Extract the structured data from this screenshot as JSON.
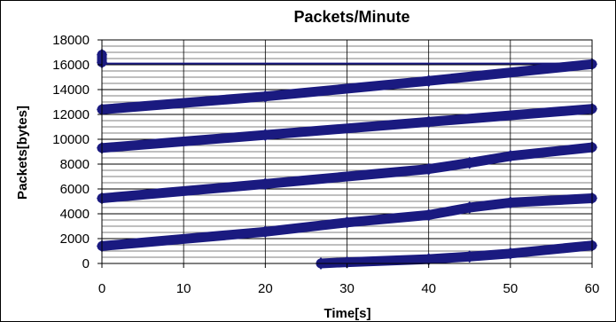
{
  "chart_data": {
    "type": "scatter",
    "title": "Packets/Minute",
    "xlabel": "Time[s]",
    "ylabel": "Packets[bytes]",
    "xlim": [
      0,
      60
    ],
    "ylim": [
      0,
      18000
    ],
    "x_ticks": [
      0,
      10,
      20,
      30,
      40,
      50,
      60
    ],
    "y_ticks": [
      0,
      2000,
      4000,
      6000,
      8000,
      10000,
      12000,
      14000,
      16000,
      18000
    ],
    "minor_y_step": 500,
    "grid": true,
    "legend": "none",
    "marker_color": "#1a1a80",
    "horizontal_lines": [
      16100
    ],
    "series": [
      {
        "points": [
          [
            0,
            16200
          ],
          [
            0,
            16800
          ]
        ]
      },
      {
        "points": [
          [
            0,
            12400
          ],
          [
            20,
            13450
          ],
          [
            40,
            14700
          ],
          [
            60,
            16050
          ]
        ]
      },
      {
        "points": [
          [
            0,
            9300
          ],
          [
            20,
            10350
          ],
          [
            40,
            11400
          ],
          [
            60,
            12450
          ]
        ]
      },
      {
        "points": [
          [
            0,
            5250
          ],
          [
            20,
            6400
          ],
          [
            40,
            7600
          ],
          [
            45,
            8100
          ],
          [
            50,
            8650
          ],
          [
            60,
            9350
          ]
        ]
      },
      {
        "points": [
          [
            0,
            1400
          ],
          [
            20,
            2550
          ],
          [
            30,
            3300
          ],
          [
            40,
            3900
          ],
          [
            45,
            4500
          ],
          [
            50,
            4900
          ],
          [
            60,
            5250
          ]
        ]
      },
      {
        "points": [
          [
            26.8,
            0
          ],
          [
            30,
            100
          ],
          [
            40,
            350
          ],
          [
            45,
            550
          ],
          [
            50,
            800
          ],
          [
            60,
            1450
          ]
        ]
      }
    ]
  }
}
